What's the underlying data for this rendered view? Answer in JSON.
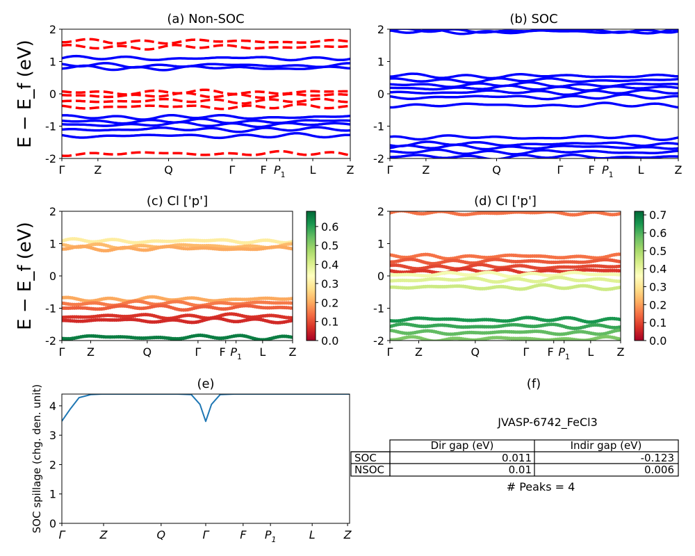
{
  "figure": {
    "ylabel": "E − E_f (eV)",
    "spill_ylabel": "SOC spillage (chg. den. unit)"
  },
  "panels": {
    "a": {
      "title": "(a) Non-SOC",
      "ticks": [
        "Γ",
        "Z",
        "Q",
        "Γ",
        "F",
        "P1",
        "L",
        "Z"
      ]
    },
    "b": {
      "title": "(b) SOC",
      "ticks": [
        "Γ",
        "Z",
        "Q",
        "Γ",
        "F",
        "P1",
        "L",
        "Z"
      ]
    },
    "c": {
      "title": "(c)  Cl ['p']",
      "ticks": [
        "Γ",
        "Z",
        "Q",
        "Γ",
        "F",
        "P1",
        "L",
        "Z"
      ]
    },
    "d": {
      "title": "(d) Cl ['p']",
      "ticks": [
        "Γ",
        "Z",
        "Q",
        "Γ",
        "F",
        "P1",
        "L",
        "Z"
      ]
    },
    "e": {
      "title": "(e)",
      "ticks": [
        "Γ",
        "Z",
        "Q",
        "Γ",
        "F",
        "P1",
        "L",
        "Z"
      ]
    },
    "f": {
      "title": "(f)"
    }
  },
  "colorbar_c": {
    "ticks": [
      "0.0",
      "0.1",
      "0.2",
      "0.3",
      "0.4",
      "0.5",
      "0.6"
    ],
    "max": 0.68
  },
  "colorbar_d": {
    "ticks": [
      "0.0",
      "0.1",
      "0.2",
      "0.3",
      "0.4",
      "0.5",
      "0.6",
      "0.7"
    ],
    "max": 0.72
  },
  "table": {
    "title": "JVASP-6742_FeCl3",
    "columns": [
      "Dir gap (eV)",
      "Indir gap (eV)"
    ],
    "rows": [
      {
        "label": "SOC",
        "dir": "0.011",
        "indir": "-0.123"
      },
      {
        "label": "NSOC",
        "dir": "0.01",
        "indir": "0.006"
      }
    ],
    "footer": "# Peaks = 4"
  },
  "chart_data": [
    {
      "panel": "a",
      "type": "line",
      "title": "(a) Non-SOC",
      "ylabel": "E − E_f (eV)",
      "ylim": [
        -2,
        2
      ],
      "yticks": [
        -2,
        -1,
        0,
        1,
        2
      ],
      "kpath": [
        "Γ",
        "Z",
        "Q",
        "Γ",
        "F",
        "P1",
        "L",
        "Z"
      ],
      "series": [
        {
          "style": "solid",
          "color": "#0000ff",
          "levels": [
            1.1,
            0.88,
            0.8,
            -0.72,
            -0.85,
            -0.95,
            -1.1,
            -1.3
          ]
        },
        {
          "style": "dashed",
          "color": "#ff0000",
          "levels": [
            1.62,
            1.45,
            0.05,
            -0.05,
            -0.22,
            -0.4,
            -1.85
          ]
        }
      ]
    },
    {
      "panel": "b",
      "type": "line",
      "title": "(b) SOC",
      "ylim": [
        -2,
        2
      ],
      "yticks": [
        -2,
        -1,
        0,
        1,
        2
      ],
      "kpath": [
        "Γ",
        "Z",
        "Q",
        "Γ",
        "F",
        "P1",
        "L",
        "Z"
      ],
      "series": [
        {
          "style": "solid",
          "color": "#0000ff",
          "levels": [
            1.95,
            1.92,
            0.55,
            0.42,
            0.28,
            0.18,
            0.05,
            -0.1,
            -0.35,
            -1.35,
            -1.55,
            -1.65,
            -1.8,
            -1.95
          ]
        }
      ]
    },
    {
      "panel": "c",
      "type": "scatter",
      "title": "(c)  Cl ['p']",
      "ylim": [
        -2,
        2
      ],
      "colorbar_range": [
        0,
        0.68
      ],
      "bands": [
        {
          "level": 1.08,
          "weight": 0.3
        },
        {
          "level": 0.92,
          "weight": 0.22
        },
        {
          "level": 0.85,
          "weight": 0.2
        },
        {
          "level": -0.72,
          "weight": 0.2
        },
        {
          "level": -0.85,
          "weight": 0.15
        },
        {
          "level": -0.98,
          "weight": 0.12
        },
        {
          "level": -1.25,
          "weight": 0.07
        },
        {
          "level": -1.38,
          "weight": 0.06
        },
        {
          "level": -1.9,
          "weight": 0.65
        }
      ]
    },
    {
      "panel": "d",
      "type": "scatter",
      "title": "(d) Cl ['p']",
      "ylim": [
        -2,
        2
      ],
      "colorbar_range": [
        0,
        0.72
      ],
      "bands": [
        {
          "level": 1.95,
          "weight": 0.15
        },
        {
          "level": 0.6,
          "weight": 0.15
        },
        {
          "level": 0.45,
          "weight": 0.12
        },
        {
          "level": 0.28,
          "weight": 0.1
        },
        {
          "level": 0.15,
          "weight": 0.08
        },
        {
          "level": 0.05,
          "weight": 0.38
        },
        {
          "level": -0.12,
          "weight": 0.42
        },
        {
          "level": -0.35,
          "weight": 0.45
        },
        {
          "level": -1.35,
          "weight": 0.65
        },
        {
          "level": -1.55,
          "weight": 0.62
        },
        {
          "level": -1.75,
          "weight": 0.58
        },
        {
          "level": -1.95,
          "weight": 0.55
        }
      ]
    },
    {
      "panel": "e",
      "type": "line",
      "title": "(e)",
      "ylabel": "SOC spillage (chg. den. unit)",
      "ylim": [
        0,
        4.4
      ],
      "yticks": [
        0,
        1,
        2,
        3,
        4
      ],
      "kpath": [
        "Γ",
        "Z",
        "Q",
        "Γ",
        "F",
        "P1",
        "L",
        "Z"
      ],
      "x": [
        0,
        0.03,
        0.06,
        0.1,
        0.14,
        0.2,
        0.3,
        0.4,
        0.45,
        0.48,
        0.5,
        0.52,
        0.55,
        0.6,
        0.7,
        0.8,
        0.9,
        1.0
      ],
      "values": [
        3.48,
        3.9,
        4.28,
        4.38,
        4.4,
        4.4,
        4.4,
        4.4,
        4.38,
        4.05,
        3.47,
        4.05,
        4.38,
        4.4,
        4.4,
        4.4,
        4.4,
        4.4
      ]
    }
  ]
}
